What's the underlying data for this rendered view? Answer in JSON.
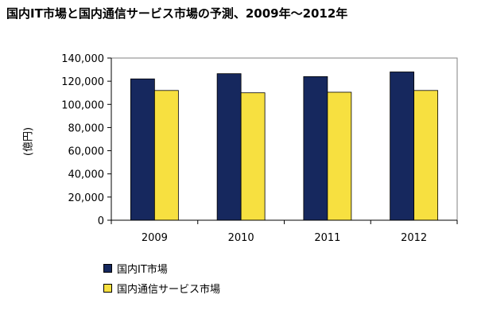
{
  "chart_data": {
    "type": "bar",
    "title": "国内IT市場と国内通信サービス市場の予測、2009年～2012年",
    "xlabel": "",
    "ylabel": "(億円)",
    "categories": [
      "2009",
      "2010",
      "2011",
      "2012"
    ],
    "series": [
      {
        "name": "国内IT市場",
        "values": [
          122000,
          126500,
          124000,
          128000
        ],
        "color": "#16285e"
      },
      {
        "name": "国内通信サービス市場",
        "values": [
          112000,
          110000,
          110500,
          112000
        ],
        "color": "#f7e040"
      }
    ],
    "ylim": [
      0,
      140000
    ],
    "yticks": [
      "0",
      "20,000",
      "40,000",
      "60,000",
      "80,000",
      "100,000",
      "120,000",
      "140,000"
    ],
    "grid": false,
    "legend": "bottom-left"
  }
}
